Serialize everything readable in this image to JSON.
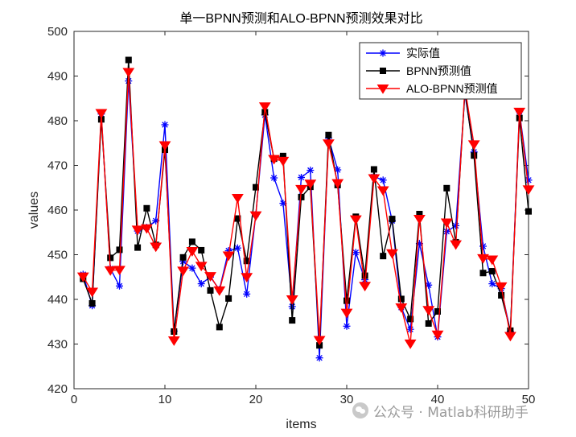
{
  "chart_data": {
    "type": "line",
    "title": "单一BPNN预测和ALO-BPNN预测效果对比",
    "xlabel": "items",
    "ylabel": "values",
    "xlim": [
      0,
      50
    ],
    "ylim": [
      420,
      500
    ],
    "x_ticks": [
      0,
      10,
      20,
      30,
      40,
      50
    ],
    "y_ticks": [
      420,
      430,
      440,
      450,
      460,
      470,
      480,
      490,
      500
    ],
    "grid": false,
    "legend_position": "top-right",
    "x": [
      1,
      2,
      3,
      4,
      5,
      6,
      7,
      8,
      9,
      10,
      11,
      12,
      13,
      14,
      15,
      16,
      17,
      18,
      19,
      20,
      21,
      22,
      23,
      24,
      25,
      26,
      27,
      28,
      29,
      30,
      31,
      32,
      33,
      34,
      35,
      36,
      37,
      38,
      39,
      40,
      41,
      42,
      43,
      44,
      45,
      46,
      47,
      48,
      49,
      50
    ],
    "series": [
      {
        "name": "实际值",
        "color": "#0000ff",
        "marker": "asterisk",
        "values": [
          445.6,
          438.6,
          481.5,
          446.9,
          443.0,
          488.9,
          455.3,
          456.1,
          457.6,
          479.1,
          432.9,
          448.5,
          447.0,
          443.5,
          445.0,
          442.2,
          450.9,
          451.5,
          441.2,
          459.0,
          481.3,
          467.2,
          461.5,
          438.4,
          467.3,
          468.9,
          426.9,
          476.1,
          469.0,
          434.0,
          450.5,
          444.4,
          467.5,
          466.7,
          457.6,
          438.2,
          433.3,
          452.5,
          443.2,
          431.6,
          455.2,
          456.5,
          486.0,
          473.0,
          451.9,
          443.5,
          442.4,
          432.8,
          482.0,
          466.7
        ]
      },
      {
        "name": "BPNN预测值",
        "color": "#000000",
        "marker": "square",
        "values": [
          444.6,
          439.1,
          480.3,
          449.3,
          451.1,
          493.6,
          451.6,
          460.4,
          452.2,
          473.5,
          432.8,
          449.4,
          452.9,
          451.0,
          442.0,
          433.8,
          440.2,
          458.1,
          448.6,
          465.1,
          481.9,
          471.5,
          472.1,
          435.3,
          462.9,
          465.2,
          429.7,
          476.8,
          465.6,
          439.7,
          458.5,
          445.3,
          469.1,
          449.7,
          458.0,
          440.1,
          435.6,
          459.1,
          434.6,
          437.3,
          464.9,
          452.8,
          486.6,
          472.2,
          445.9,
          446.3,
          440.9,
          433.0,
          480.6,
          459.7
        ]
      },
      {
        "name": "ALO-BPNN预测值",
        "color": "#ff0000",
        "marker": "triangle-down",
        "values": [
          445.1,
          441.7,
          481.7,
          446.5,
          446.6,
          490.9,
          455.6,
          455.9,
          451.8,
          474.5,
          430.8,
          446.4,
          450.8,
          447.5,
          445.2,
          442.0,
          449.8,
          462.7,
          445.0,
          458.8,
          483.2,
          471.4,
          471.0,
          440.0,
          464.7,
          465.9,
          430.9,
          474.9,
          466.0,
          437.0,
          457.9,
          443.0,
          467.1,
          464.4,
          450.3,
          438.2,
          430.1,
          458.0,
          437.6,
          432.1,
          457.2,
          452.3,
          487.3,
          474.7,
          449.2,
          448.9,
          442.9,
          431.8,
          482.0,
          464.6
        ]
      }
    ]
  },
  "watermark": {
    "text": "公众号 · Matlab科研助手",
    "icon": "wechat-icon"
  }
}
